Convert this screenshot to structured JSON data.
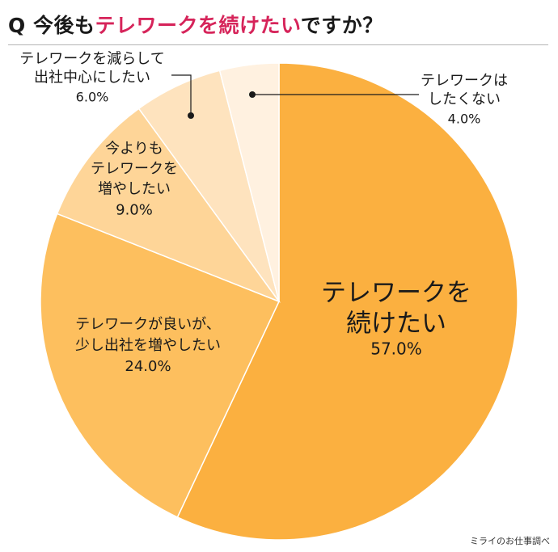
{
  "title": {
    "prefix": "Q 今後も",
    "highlight": "テレワークを続けたい",
    "suffix": "ですか？"
  },
  "source": "ミライのお仕事調べ",
  "colors": {
    "title_highlight": "#d6245a"
  },
  "chart_data": {
    "type": "pie",
    "unit": "%",
    "start_angle": "12 o'clock",
    "direction": "clockwise",
    "slices": [
      {
        "label": [
          "テレワークを",
          "続けたい"
        ],
        "value": 57.0,
        "value_label": "57.0%",
        "color": "#fbb040"
      },
      {
        "label": [
          "テレワークが良いが、",
          "少し出社を増やしたい"
        ],
        "value": 24.0,
        "value_label": "24.0%",
        "color": "#fdbf5e"
      },
      {
        "label": [
          "今よりも",
          "テレワークを",
          "増やしたい"
        ],
        "value": 9.0,
        "value_label": "9.0%",
        "color": "#fed598"
      },
      {
        "label": [
          "テレワークを減らして",
          "出社中心にしたい"
        ],
        "value": 6.0,
        "value_label": "6.0%",
        "color": "#fee3be"
      },
      {
        "label": [
          "テレワークは",
          "したくない"
        ],
        "value": 4.0,
        "value_label": "4.0%",
        "color": "#fff1e0"
      }
    ]
  }
}
